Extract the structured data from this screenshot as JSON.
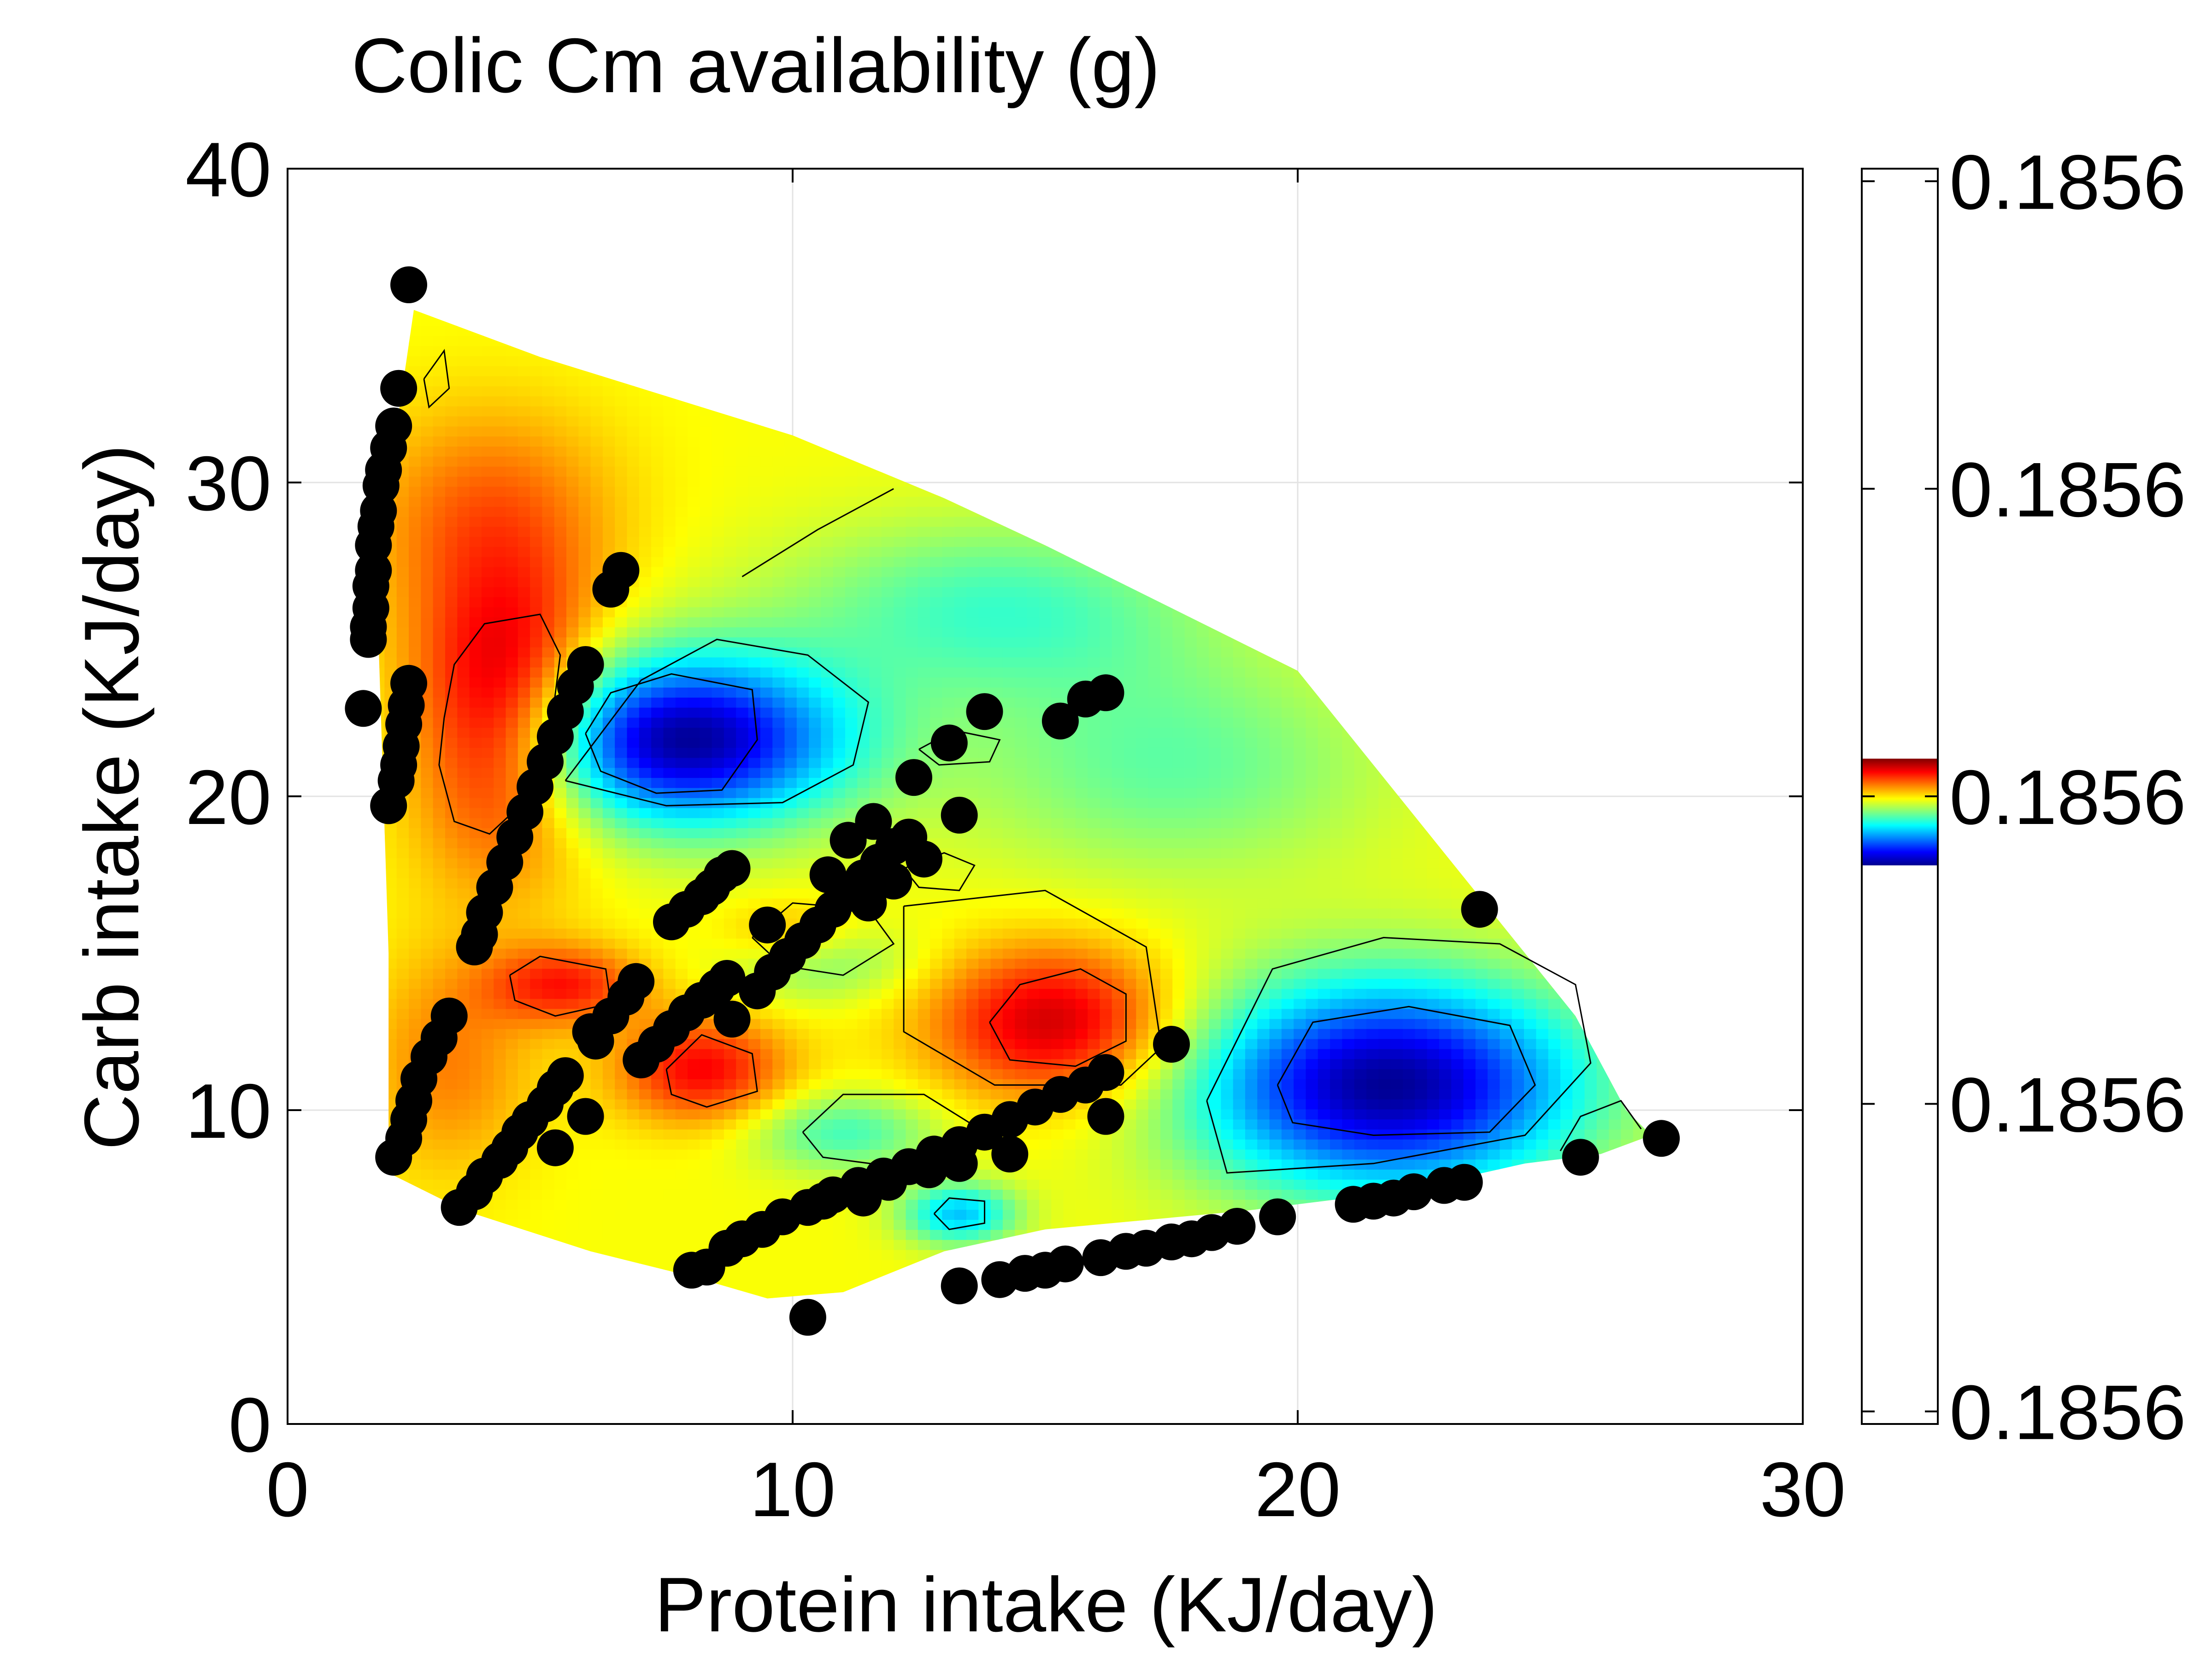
{
  "chart_data": {
    "type": "heatmap",
    "title": "Colic Cm availability (g)",
    "xlabel": "Protein intake (KJ/day)",
    "ylabel": "Carb intake (KJ/day)",
    "xlim": [
      0,
      30
    ],
    "ylim": [
      0,
      40
    ],
    "x_ticks": [
      0,
      10,
      20,
      30
    ],
    "x_tick_labels": [
      "0",
      "10",
      "20",
      "30"
    ],
    "y_ticks": [
      0,
      10,
      20,
      30,
      40
    ],
    "y_tick_labels": [
      "0",
      "10",
      "20",
      "30",
      "40"
    ],
    "grid": true,
    "colormap": "jet",
    "colorbar": {
      "tick_labels": [
        "0.1856",
        "0.1856",
        "0.1856",
        "0.1856",
        "0.1856"
      ],
      "band_range": [
        0.445,
        0.53
      ]
    },
    "surface_boundary": [
      [
        2.5,
        35.5
      ],
      [
        5,
        34
      ],
      [
        10,
        31.5
      ],
      [
        13,
        29.5
      ],
      [
        15,
        28
      ],
      [
        17.5,
        26
      ],
      [
        20,
        24
      ],
      [
        22,
        20
      ],
      [
        23.5,
        17
      ],
      [
        24.5,
        15
      ],
      [
        25.5,
        13
      ],
      [
        26.5,
        10
      ],
      [
        27,
        9.2
      ],
      [
        26,
        8.6
      ],
      [
        24.5,
        8.3
      ],
      [
        22,
        7.4
      ],
      [
        19,
        6.8
      ],
      [
        15,
        6.2
      ],
      [
        13,
        5.5
      ],
      [
        11,
        4.2
      ],
      [
        9.5,
        4
      ],
      [
        8,
        4.7
      ],
      [
        6,
        5.5
      ],
      [
        3.5,
        6.8
      ],
      [
        2,
        8
      ],
      [
        2,
        15
      ],
      [
        1.8,
        25
      ],
      [
        2,
        30
      ],
      [
        2.5,
        35.5
      ]
    ],
    "extrema": [
      {
        "kind": "high",
        "x": 4.3,
        "y": 22.5,
        "sigma": [
          1.3,
          3.2
        ],
        "amp": 1.0
      },
      {
        "kind": "high",
        "x": 15.2,
        "y": 12.8,
        "sigma": [
          1.7,
          1.7
        ],
        "amp": 0.85
      },
      {
        "kind": "high",
        "x": 8.2,
        "y": 11.3,
        "sigma": [
          1.2,
          1.2
        ],
        "amp": 0.7
      },
      {
        "kind": "high",
        "x": 5.5,
        "y": 14.0,
        "sigma": [
          1.1,
          0.9
        ],
        "amp": 0.6
      },
      {
        "kind": "high",
        "x": 3.2,
        "y": 11.5,
        "sigma": [
          1.2,
          2.5
        ],
        "amp": 0.35
      },
      {
        "kind": "high",
        "x": 4.0,
        "y": 29.0,
        "sigma": [
          1.8,
          2.5
        ],
        "amp": 0.4
      },
      {
        "kind": "high",
        "x": 10.0,
        "y": 15.5,
        "sigma": [
          1.0,
          0.8
        ],
        "amp": 0.35
      },
      {
        "kind": "low",
        "x": 7.8,
        "y": 21.8,
        "sigma": [
          2.3,
          1.9
        ],
        "amp": 1.0
      },
      {
        "kind": "low",
        "x": 21.8,
        "y": 10.8,
        "sigma": [
          2.7,
          2.4
        ],
        "amp": 1.0
      },
      {
        "kind": "low",
        "x": 13.3,
        "y": 6.7,
        "sigma": [
          0.8,
          0.7
        ],
        "amp": 0.5
      },
      {
        "kind": "low",
        "x": 11.0,
        "y": 9.3,
        "sigma": [
          1.3,
          0.9
        ],
        "amp": 0.3
      },
      {
        "kind": "low",
        "x": 10.5,
        "y": 14.8,
        "sigma": [
          1.3,
          0.9
        ],
        "amp": 0.25
      },
      {
        "kind": "low",
        "x": 17.5,
        "y": 21.0,
        "sigma": [
          3.0,
          2.5
        ],
        "amp": 0.25
      },
      {
        "kind": "low",
        "x": 14.0,
        "y": 26.0,
        "sigma": [
          3.0,
          2.0
        ],
        "amp": 0.3
      }
    ],
    "contours": [
      [
        [
          3.1,
          22.5
        ],
        [
          3.3,
          24.2
        ],
        [
          3.9,
          25.5
        ],
        [
          5.0,
          25.8
        ],
        [
          5.4,
          24.5
        ],
        [
          5.2,
          22.0
        ],
        [
          4.8,
          20.0
        ],
        [
          4.0,
          18.8
        ],
        [
          3.3,
          19.2
        ],
        [
          3.0,
          21.0
        ],
        [
          3.1,
          22.5
        ]
      ],
      [
        [
          5.9,
          22.0
        ],
        [
          6.4,
          23.3
        ],
        [
          7.6,
          23.9
        ],
        [
          9.2,
          23.4
        ],
        [
          9.3,
          21.8
        ],
        [
          8.6,
          20.2
        ],
        [
          7.3,
          20.1
        ],
        [
          6.2,
          20.8
        ],
        [
          5.9,
          22.0
        ]
      ],
      [
        [
          5.5,
          20.5
        ],
        [
          7.0,
          23.7
        ],
        [
          8.5,
          25.0
        ],
        [
          10.3,
          24.5
        ],
        [
          11.5,
          23.0
        ],
        [
          11.2,
          21.0
        ],
        [
          9.8,
          19.8
        ],
        [
          7.5,
          19.7
        ],
        [
          5.5,
          20.5
        ]
      ],
      [
        [
          19.6,
          10.8
        ],
        [
          20.3,
          12.8
        ],
        [
          22.2,
          13.3
        ],
        [
          24.2,
          12.7
        ],
        [
          24.7,
          10.8
        ],
        [
          23.8,
          9.3
        ],
        [
          21.5,
          9.2
        ],
        [
          19.9,
          9.6
        ],
        [
          19.6,
          10.8
        ]
      ],
      [
        [
          18.2,
          10.3
        ],
        [
          19.5,
          14.5
        ],
        [
          21.7,
          15.5
        ],
        [
          24.0,
          15.3
        ],
        [
          25.5,
          14.0
        ],
        [
          25.8,
          11.5
        ],
        [
          24.5,
          9.2
        ],
        [
          21.5,
          8.3
        ],
        [
          18.6,
          8.0
        ],
        [
          18.2,
          10.3
        ]
      ],
      [
        [
          13.9,
          12.8
        ],
        [
          14.5,
          14.0
        ],
        [
          15.7,
          14.5
        ],
        [
          16.6,
          13.7
        ],
        [
          16.6,
          12.2
        ],
        [
          15.6,
          11.4
        ],
        [
          14.3,
          11.6
        ],
        [
          13.9,
          12.8
        ]
      ],
      [
        [
          12.2,
          16.5
        ],
        [
          15.0,
          17.0
        ],
        [
          17.0,
          15.2
        ],
        [
          17.3,
          12.0
        ],
        [
          16.5,
          10.8
        ],
        [
          14.0,
          10.8
        ],
        [
          12.2,
          12.5
        ],
        [
          12.2,
          16.5
        ]
      ],
      [
        [
          7.5,
          11.3
        ],
        [
          8.2,
          12.4
        ],
        [
          9.2,
          11.8
        ],
        [
          9.3,
          10.6
        ],
        [
          8.3,
          10.1
        ],
        [
          7.6,
          10.5
        ],
        [
          7.5,
          11.3
        ]
      ],
      [
        [
          4.4,
          14.3
        ],
        [
          5.0,
          14.9
        ],
        [
          6.3,
          14.5
        ],
        [
          6.4,
          13.4
        ],
        [
          5.3,
          13.0
        ],
        [
          4.5,
          13.5
        ],
        [
          4.4,
          14.3
        ]
      ],
      [
        [
          12.8,
          6.7
        ],
        [
          13.1,
          7.2
        ],
        [
          13.8,
          7.1
        ],
        [
          13.8,
          6.4
        ],
        [
          13.1,
          6.2
        ],
        [
          12.8,
          6.7
        ]
      ],
      [
        [
          10.2,
          9.3
        ],
        [
          11.0,
          10.5
        ],
        [
          12.6,
          10.5
        ],
        [
          13.6,
          9.5
        ],
        [
          12.0,
          8.2
        ],
        [
          10.6,
          8.5
        ],
        [
          10.2,
          9.3
        ]
      ],
      [
        [
          9.2,
          15.5
        ],
        [
          10.0,
          16.6
        ],
        [
          11.5,
          16.4
        ],
        [
          12.0,
          15.3
        ],
        [
          11.0,
          14.3
        ],
        [
          9.8,
          14.6
        ],
        [
          9.2,
          15.5
        ]
      ],
      [
        [
          12.2,
          17.7
        ],
        [
          13.0,
          18.2
        ],
        [
          13.6,
          17.8
        ],
        [
          13.3,
          17.0
        ],
        [
          12.5,
          17.1
        ],
        [
          12.2,
          17.7
        ]
      ],
      [
        [
          12.5,
          21.5
        ],
        [
          13.2,
          22.1
        ],
        [
          14.1,
          21.8
        ],
        [
          13.9,
          21.1
        ],
        [
          12.9,
          21.0
        ],
        [
          12.5,
          21.5
        ]
      ],
      [
        [
          2.7,
          33.3
        ],
        [
          3.1,
          34.2
        ],
        [
          3.2,
          33.0
        ],
        [
          2.8,
          32.4
        ],
        [
          2.7,
          33.3
        ]
      ],
      [
        [
          9.0,
          27.0
        ],
        [
          10.5,
          28.5
        ],
        [
          12.0,
          29.8
        ]
      ],
      [
        [
          25.2,
          8.7
        ],
        [
          25.6,
          9.8
        ],
        [
          26.4,
          10.3
        ],
        [
          26.8,
          9.4
        ]
      ]
    ],
    "points": [
      [
        2.4,
        36.3
      ],
      [
        2.2,
        33.0
      ],
      [
        2.1,
        31.8
      ],
      [
        2.0,
        31.1
      ],
      [
        1.9,
        30.4
      ],
      [
        1.85,
        29.9
      ],
      [
        1.8,
        29.1
      ],
      [
        1.75,
        28.6
      ],
      [
        1.7,
        28.0
      ],
      [
        1.7,
        27.2
      ],
      [
        1.65,
        26.7
      ],
      [
        1.65,
        26.0
      ],
      [
        1.6,
        25.4
      ],
      [
        1.6,
        25.0
      ],
      [
        1.5,
        22.8
      ],
      [
        2.4,
        23.6
      ],
      [
        2.35,
        22.9
      ],
      [
        2.3,
        22.3
      ],
      [
        2.25,
        21.6
      ],
      [
        2.2,
        21.0
      ],
      [
        2.15,
        20.5
      ],
      [
        2.0,
        19.7
      ],
      [
        6.6,
        27.2
      ],
      [
        6.4,
        26.6
      ],
      [
        5.9,
        24.2
      ],
      [
        5.7,
        23.5
      ],
      [
        5.5,
        22.7
      ],
      [
        5.3,
        21.9
      ],
      [
        5.1,
        21.1
      ],
      [
        4.9,
        20.3
      ],
      [
        4.7,
        19.5
      ],
      [
        4.5,
        18.7
      ],
      [
        4.3,
        17.9
      ],
      [
        4.1,
        17.1
      ],
      [
        3.9,
        16.3
      ],
      [
        3.8,
        15.6
      ],
      [
        3.7,
        15.2
      ],
      [
        3.2,
        13.0
      ],
      [
        3.0,
        12.3
      ],
      [
        2.8,
        11.7
      ],
      [
        2.6,
        11.0
      ],
      [
        2.5,
        10.3
      ],
      [
        2.4,
        9.7
      ],
      [
        2.3,
        9.1
      ],
      [
        2.1,
        8.5
      ],
      [
        3.4,
        6.9
      ],
      [
        3.7,
        7.4
      ],
      [
        3.9,
        7.9
      ],
      [
        4.2,
        8.4
      ],
      [
        4.4,
        8.8
      ],
      [
        4.6,
        9.3
      ],
      [
        4.8,
        9.7
      ],
      [
        5.1,
        10.2
      ],
      [
        5.3,
        10.7
      ],
      [
        5.5,
        11.1
      ],
      [
        5.3,
        8.8
      ],
      [
        5.9,
        9.8
      ],
      [
        6.0,
        12.5
      ],
      [
        6.1,
        12.2
      ],
      [
        6.4,
        13.0
      ],
      [
        6.7,
        13.6
      ],
      [
        6.9,
        14.1
      ],
      [
        7.0,
        11.6
      ],
      [
        7.3,
        12.1
      ],
      [
        7.6,
        12.6
      ],
      [
        7.9,
        13.1
      ],
      [
        8.2,
        13.5
      ],
      [
        8.5,
        13.9
      ],
      [
        8.7,
        14.2
      ],
      [
        8.8,
        12.9
      ],
      [
        7.6,
        16.0
      ],
      [
        7.9,
        16.4
      ],
      [
        8.2,
        16.8
      ],
      [
        8.4,
        17.1
      ],
      [
        8.6,
        17.5
      ],
      [
        8.8,
        17.7
      ],
      [
        9.3,
        13.8
      ],
      [
        9.6,
        14.4
      ],
      [
        9.9,
        14.9
      ],
      [
        10.2,
        15.4
      ],
      [
        10.5,
        15.9
      ],
      [
        10.8,
        16.4
      ],
      [
        11.1,
        16.9
      ],
      [
        11.4,
        17.4
      ],
      [
        11.7,
        17.9
      ],
      [
        12.0,
        18.4
      ],
      [
        12.3,
        18.7
      ],
      [
        12.6,
        18.0
      ],
      [
        12.0,
        17.3
      ],
      [
        11.5,
        16.6
      ],
      [
        9.5,
        15.9
      ],
      [
        10.7,
        17.5
      ],
      [
        11.1,
        18.6
      ],
      [
        11.6,
        19.2
      ],
      [
        12.4,
        20.6
      ],
      [
        13.3,
        19.4
      ],
      [
        13.1,
        21.7
      ],
      [
        13.8,
        22.7
      ],
      [
        15.3,
        22.4
      ],
      [
        15.8,
        23.1
      ],
      [
        16.2,
        23.3
      ],
      [
        23.6,
        16.4
      ],
      [
        17.5,
        12.1
      ],
      [
        16.2,
        11.2
      ],
      [
        15.8,
        10.8
      ],
      [
        15.3,
        10.5
      ],
      [
        14.8,
        10.1
      ],
      [
        14.3,
        9.7
      ],
      [
        13.8,
        9.3
      ],
      [
        13.3,
        8.9
      ],
      [
        12.8,
        8.6
      ],
      [
        12.3,
        8.2
      ],
      [
        11.8,
        7.9
      ],
      [
        11.3,
        7.6
      ],
      [
        10.8,
        7.3
      ],
      [
        10.3,
        6.9
      ],
      [
        9.8,
        6.6
      ],
      [
        9.4,
        6.2
      ],
      [
        9.0,
        5.9
      ],
      [
        8.7,
        5.6
      ],
      [
        16.2,
        9.8
      ],
      [
        14.3,
        8.6
      ],
      [
        13.3,
        8.3
      ],
      [
        12.7,
        8.1
      ],
      [
        11.9,
        7.7
      ],
      [
        11.4,
        7.2
      ],
      [
        10.6,
        7.1
      ],
      [
        10.3,
        3.4
      ],
      [
        8.0,
        4.9
      ],
      [
        8.3,
        5.0
      ],
      [
        13.3,
        4.4
      ],
      [
        14.1,
        4.6
      ],
      [
        14.6,
        4.8
      ],
      [
        15.0,
        4.9
      ],
      [
        15.4,
        5.1
      ],
      [
        16.1,
        5.3
      ],
      [
        16.6,
        5.5
      ],
      [
        17.0,
        5.6
      ],
      [
        17.5,
        5.8
      ],
      [
        17.9,
        5.9
      ],
      [
        18.3,
        6.1
      ],
      [
        18.8,
        6.3
      ],
      [
        19.6,
        6.6
      ],
      [
        21.1,
        7.0
      ],
      [
        21.5,
        7.1
      ],
      [
        21.9,
        7.2
      ],
      [
        22.3,
        7.4
      ],
      [
        22.9,
        7.6
      ],
      [
        23.3,
        7.7
      ],
      [
        25.6,
        8.5
      ],
      [
        27.2,
        9.1
      ]
    ]
  }
}
